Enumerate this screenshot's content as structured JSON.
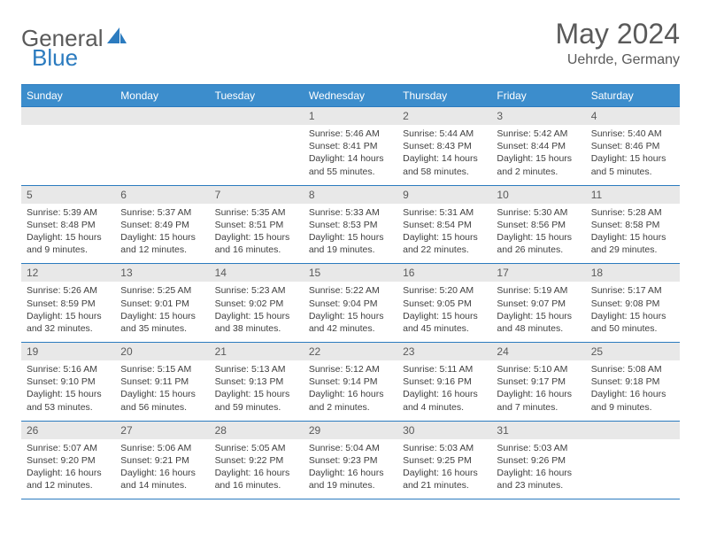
{
  "brand": {
    "text1": "General",
    "text2": "Blue"
  },
  "title": "May 2024",
  "location": "Uehrde, Germany",
  "colors": {
    "header_bg": "#3c8dcc",
    "border": "#2b7bbf",
    "daynum_bg": "#e8e8e8",
    "text_gray": "#5a5a5a"
  },
  "day_headers": [
    "Sunday",
    "Monday",
    "Tuesday",
    "Wednesday",
    "Thursday",
    "Friday",
    "Saturday"
  ],
  "weeks": [
    [
      {
        "n": "",
        "sr": "",
        "ss": "",
        "dl": ""
      },
      {
        "n": "",
        "sr": "",
        "ss": "",
        "dl": ""
      },
      {
        "n": "",
        "sr": "",
        "ss": "",
        "dl": ""
      },
      {
        "n": "1",
        "sr": "Sunrise: 5:46 AM",
        "ss": "Sunset: 8:41 PM",
        "dl": "Daylight: 14 hours and 55 minutes."
      },
      {
        "n": "2",
        "sr": "Sunrise: 5:44 AM",
        "ss": "Sunset: 8:43 PM",
        "dl": "Daylight: 14 hours and 58 minutes."
      },
      {
        "n": "3",
        "sr": "Sunrise: 5:42 AM",
        "ss": "Sunset: 8:44 PM",
        "dl": "Daylight: 15 hours and 2 minutes."
      },
      {
        "n": "4",
        "sr": "Sunrise: 5:40 AM",
        "ss": "Sunset: 8:46 PM",
        "dl": "Daylight: 15 hours and 5 minutes."
      }
    ],
    [
      {
        "n": "5",
        "sr": "Sunrise: 5:39 AM",
        "ss": "Sunset: 8:48 PM",
        "dl": "Daylight: 15 hours and 9 minutes."
      },
      {
        "n": "6",
        "sr": "Sunrise: 5:37 AM",
        "ss": "Sunset: 8:49 PM",
        "dl": "Daylight: 15 hours and 12 minutes."
      },
      {
        "n": "7",
        "sr": "Sunrise: 5:35 AM",
        "ss": "Sunset: 8:51 PM",
        "dl": "Daylight: 15 hours and 16 minutes."
      },
      {
        "n": "8",
        "sr": "Sunrise: 5:33 AM",
        "ss": "Sunset: 8:53 PM",
        "dl": "Daylight: 15 hours and 19 minutes."
      },
      {
        "n": "9",
        "sr": "Sunrise: 5:31 AM",
        "ss": "Sunset: 8:54 PM",
        "dl": "Daylight: 15 hours and 22 minutes."
      },
      {
        "n": "10",
        "sr": "Sunrise: 5:30 AM",
        "ss": "Sunset: 8:56 PM",
        "dl": "Daylight: 15 hours and 26 minutes."
      },
      {
        "n": "11",
        "sr": "Sunrise: 5:28 AM",
        "ss": "Sunset: 8:58 PM",
        "dl": "Daylight: 15 hours and 29 minutes."
      }
    ],
    [
      {
        "n": "12",
        "sr": "Sunrise: 5:26 AM",
        "ss": "Sunset: 8:59 PM",
        "dl": "Daylight: 15 hours and 32 minutes."
      },
      {
        "n": "13",
        "sr": "Sunrise: 5:25 AM",
        "ss": "Sunset: 9:01 PM",
        "dl": "Daylight: 15 hours and 35 minutes."
      },
      {
        "n": "14",
        "sr": "Sunrise: 5:23 AM",
        "ss": "Sunset: 9:02 PM",
        "dl": "Daylight: 15 hours and 38 minutes."
      },
      {
        "n": "15",
        "sr": "Sunrise: 5:22 AM",
        "ss": "Sunset: 9:04 PM",
        "dl": "Daylight: 15 hours and 42 minutes."
      },
      {
        "n": "16",
        "sr": "Sunrise: 5:20 AM",
        "ss": "Sunset: 9:05 PM",
        "dl": "Daylight: 15 hours and 45 minutes."
      },
      {
        "n": "17",
        "sr": "Sunrise: 5:19 AM",
        "ss": "Sunset: 9:07 PM",
        "dl": "Daylight: 15 hours and 48 minutes."
      },
      {
        "n": "18",
        "sr": "Sunrise: 5:17 AM",
        "ss": "Sunset: 9:08 PM",
        "dl": "Daylight: 15 hours and 50 minutes."
      }
    ],
    [
      {
        "n": "19",
        "sr": "Sunrise: 5:16 AM",
        "ss": "Sunset: 9:10 PM",
        "dl": "Daylight: 15 hours and 53 minutes."
      },
      {
        "n": "20",
        "sr": "Sunrise: 5:15 AM",
        "ss": "Sunset: 9:11 PM",
        "dl": "Daylight: 15 hours and 56 minutes."
      },
      {
        "n": "21",
        "sr": "Sunrise: 5:13 AM",
        "ss": "Sunset: 9:13 PM",
        "dl": "Daylight: 15 hours and 59 minutes."
      },
      {
        "n": "22",
        "sr": "Sunrise: 5:12 AM",
        "ss": "Sunset: 9:14 PM",
        "dl": "Daylight: 16 hours and 2 minutes."
      },
      {
        "n": "23",
        "sr": "Sunrise: 5:11 AM",
        "ss": "Sunset: 9:16 PM",
        "dl": "Daylight: 16 hours and 4 minutes."
      },
      {
        "n": "24",
        "sr": "Sunrise: 5:10 AM",
        "ss": "Sunset: 9:17 PM",
        "dl": "Daylight: 16 hours and 7 minutes."
      },
      {
        "n": "25",
        "sr": "Sunrise: 5:08 AM",
        "ss": "Sunset: 9:18 PM",
        "dl": "Daylight: 16 hours and 9 minutes."
      }
    ],
    [
      {
        "n": "26",
        "sr": "Sunrise: 5:07 AM",
        "ss": "Sunset: 9:20 PM",
        "dl": "Daylight: 16 hours and 12 minutes."
      },
      {
        "n": "27",
        "sr": "Sunrise: 5:06 AM",
        "ss": "Sunset: 9:21 PM",
        "dl": "Daylight: 16 hours and 14 minutes."
      },
      {
        "n": "28",
        "sr": "Sunrise: 5:05 AM",
        "ss": "Sunset: 9:22 PM",
        "dl": "Daylight: 16 hours and 16 minutes."
      },
      {
        "n": "29",
        "sr": "Sunrise: 5:04 AM",
        "ss": "Sunset: 9:23 PM",
        "dl": "Daylight: 16 hours and 19 minutes."
      },
      {
        "n": "30",
        "sr": "Sunrise: 5:03 AM",
        "ss": "Sunset: 9:25 PM",
        "dl": "Daylight: 16 hours and 21 minutes."
      },
      {
        "n": "31",
        "sr": "Sunrise: 5:03 AM",
        "ss": "Sunset: 9:26 PM",
        "dl": "Daylight: 16 hours and 23 minutes."
      },
      {
        "n": "",
        "sr": "",
        "ss": "",
        "dl": ""
      }
    ]
  ]
}
